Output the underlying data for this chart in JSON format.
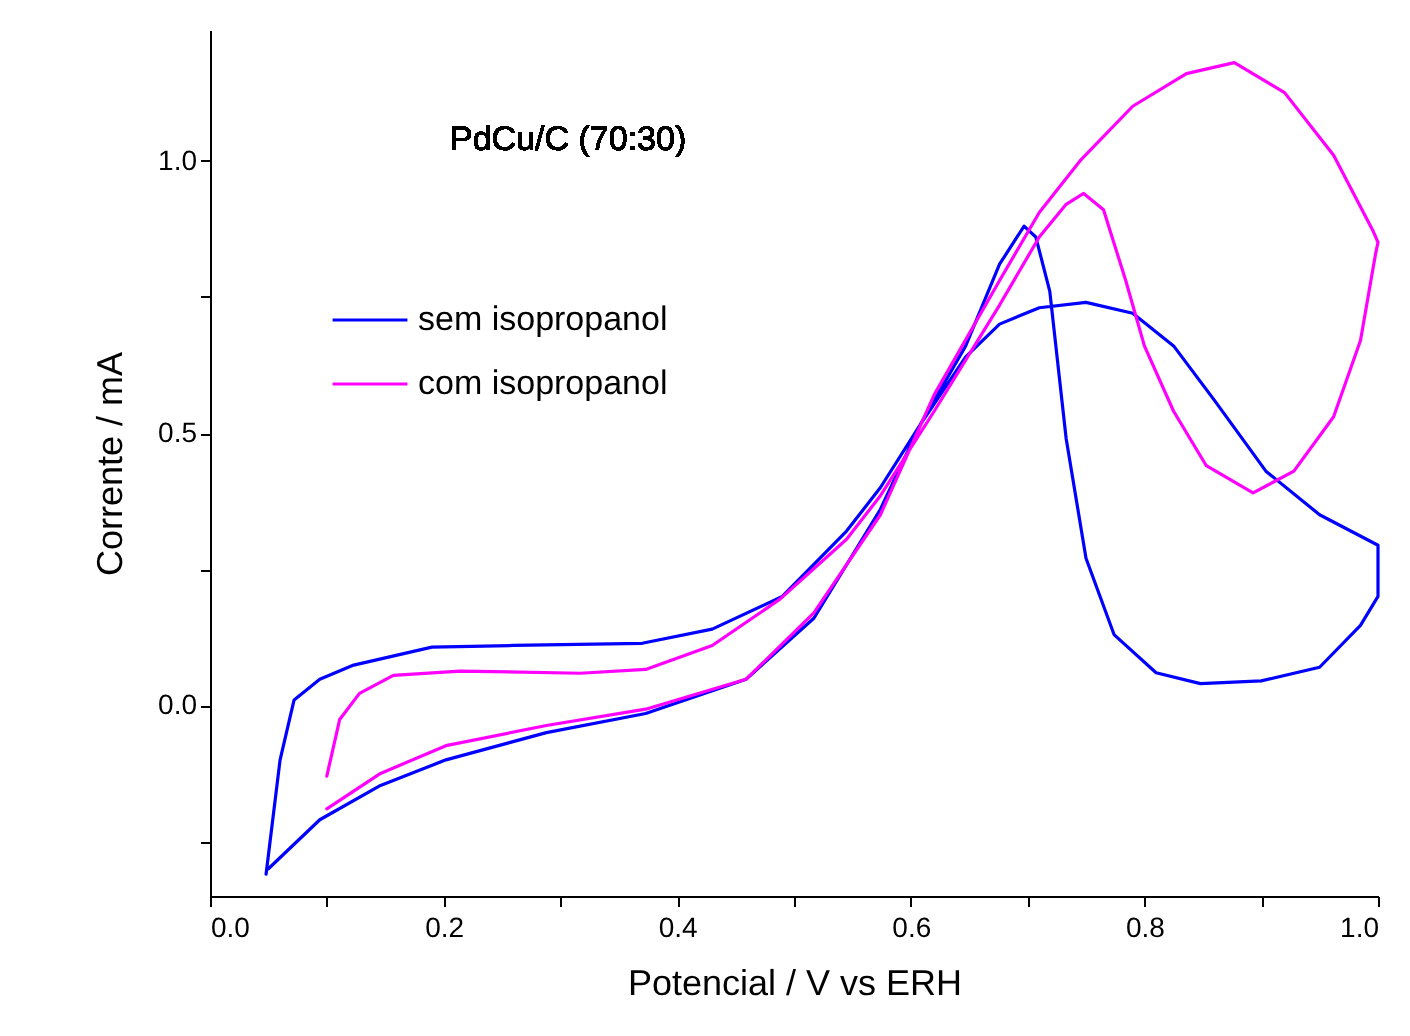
{
  "chart_data": {
    "type": "line",
    "xlabel": "Potencial / V vs ERH",
    "ylabel": "Corrente / mA",
    "annotations": [
      "PdCu/C (70:30)"
    ],
    "xlim": [
      0,
      1.0
    ],
    "ylim": [
      -0.35,
      1.24
    ],
    "xticks": [
      {
        "value": 0,
        "label": "0.0"
      },
      {
        "value": 0.1,
        "label": null
      },
      {
        "value": 0.2,
        "label": "0.2"
      },
      {
        "value": 0.3,
        "label": null
      },
      {
        "value": 0.4,
        "label": "0.4"
      },
      {
        "value": 0.5,
        "label": null
      },
      {
        "value": 0.6,
        "label": "0.6"
      },
      {
        "value": 0.7,
        "label": null
      },
      {
        "value": 0.8,
        "label": "0.8"
      },
      {
        "value": 0.9,
        "label": null
      },
      {
        "value": 1.0,
        "label": "1.0"
      }
    ],
    "yticks": [
      {
        "value": -0.25,
        "label": null
      },
      {
        "value": 0,
        "label": "0.0"
      },
      {
        "value": 0.25,
        "label": null
      },
      {
        "value": 0.5,
        "label": "0.5"
      },
      {
        "value": 0.75,
        "label": null
      },
      {
        "value": 1.0,
        "label": "1.0"
      }
    ],
    "grid": false,
    "legend": "top left",
    "marker": "none",
    "line_style": "solid",
    "series": [
      {
        "name": "sem isopropanol",
        "color": "#0000ff",
        "x": [
          0.048,
          0.06,
          0.072,
          0.094,
          0.123,
          0.19,
          0.26,
          0.37,
          0.43,
          0.49,
          0.545,
          0.574,
          0.608,
          0.647,
          0.676,
          0.697,
          0.707,
          0.719,
          0.733,
          0.75,
          0.774,
          0.81,
          0.848,
          0.9,
          0.95,
          0.985,
          1.0,
          1.0,
          0.95,
          0.904,
          0.86,
          0.825,
          0.79,
          0.75,
          0.71,
          0.676,
          0.647,
          0.608,
          0.574,
          0.517,
          0.459,
          0.373,
          0.288,
          0.202,
          0.146,
          0.094,
          0.05
        ],
        "values": [
          -0.31,
          -0.1,
          0.01,
          0.048,
          0.074,
          0.107,
          0.11,
          0.114,
          0.14,
          0.2,
          0.32,
          0.4,
          0.515,
          0.66,
          0.81,
          0.88,
          0.86,
          0.76,
          0.49,
          0.27,
          0.13,
          0.06,
          0.04,
          0.045,
          0.07,
          0.147,
          0.2,
          0.294,
          0.35,
          0.43,
          0.56,
          0.66,
          0.72,
          0.74,
          0.73,
          0.7,
          0.64,
          0.515,
          0.36,
          0.16,
          0.048,
          -0.015,
          -0.05,
          -0.1,
          -0.147,
          -0.21,
          -0.3
        ]
      },
      {
        "name": "com isopropanol",
        "color": "#ff00ff",
        "x": [
          0.1,
          0.111,
          0.128,
          0.157,
          0.214,
          0.317,
          0.373,
          0.43,
          0.488,
          0.545,
          0.574,
          0.62,
          0.676,
          0.71,
          0.733,
          0.748,
          0.765,
          0.784,
          0.8,
          0.825,
          0.853,
          0.893,
          0.928,
          0.962,
          0.985,
          0.998,
          1.0,
          0.996,
          0.962,
          0.92,
          0.877,
          0.836,
          0.79,
          0.745,
          0.71,
          0.676,
          0.62,
          0.574,
          0.517,
          0.459,
          0.373,
          0.288,
          0.202,
          0.146,
          0.1
        ],
        "values": [
          -0.13,
          -0.026,
          0.022,
          0.055,
          0.063,
          0.059,
          0.066,
          0.11,
          0.195,
          0.305,
          0.385,
          0.54,
          0.735,
          0.86,
          0.92,
          0.94,
          0.91,
          0.78,
          0.66,
          0.54,
          0.44,
          0.39,
          0.43,
          0.53,
          0.67,
          0.83,
          0.85,
          0.87,
          1.01,
          1.125,
          1.18,
          1.16,
          1.1,
          1.0,
          0.905,
          0.78,
          0.57,
          0.35,
          0.17,
          0.048,
          -0.007,
          -0.037,
          -0.074,
          -0.125,
          -0.19
        ]
      }
    ]
  }
}
